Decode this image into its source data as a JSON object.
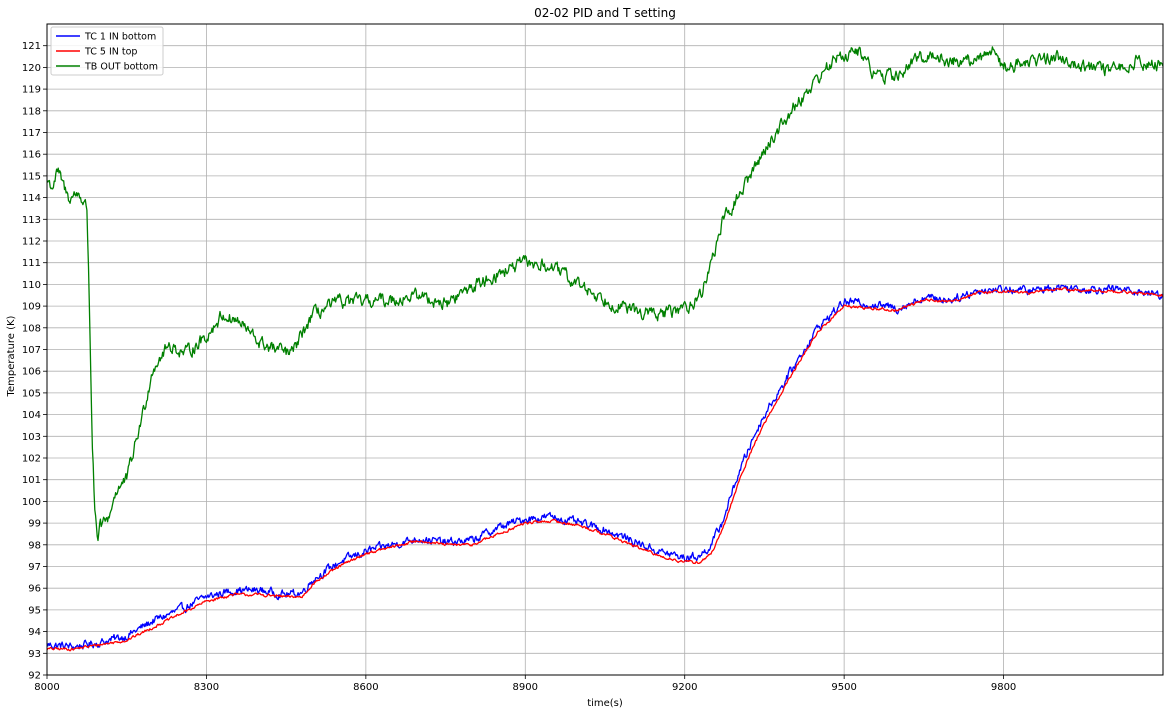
{
  "chart_data": {
    "type": "line",
    "title": "02-02 PID and T setting",
    "xlabel": "time(s)",
    "ylabel": "Temperature (K)",
    "xlim": [
      8000,
      10100
    ],
    "ylim": [
      92,
      122
    ],
    "xticks": [
      8000,
      8300,
      8600,
      8900,
      9200,
      9500,
      9800
    ],
    "yticks": [
      92,
      93,
      94,
      95,
      96,
      97,
      98,
      99,
      100,
      101,
      102,
      103,
      104,
      105,
      106,
      107,
      108,
      109,
      110,
      111,
      112,
      113,
      114,
      115,
      116,
      117,
      118,
      119,
      120,
      121
    ],
    "grid": true,
    "legend": "top-left",
    "series": [
      {
        "name": "TC 1 IN bottom",
        "color": "#0000ff",
        "noise": 0.35,
        "x": [
          8000,
          8050,
          8100,
          8150,
          8200,
          8250,
          8300,
          8350,
          8400,
          8450,
          8480,
          8500,
          8550,
          8600,
          8650,
          8700,
          8750,
          8800,
          8850,
          8900,
          8950,
          9000,
          9050,
          9100,
          9150,
          9200,
          9230,
          9250,
          9270,
          9300,
          9330,
          9350,
          9400,
          9450,
          9500,
          9550,
          9600,
          9650,
          9700,
          9750,
          9800,
          9850,
          9900,
          9950,
          10000,
          10050,
          10100
        ],
        "values": [
          93.4,
          93.3,
          93.5,
          93.8,
          94.5,
          95.0,
          95.6,
          95.9,
          95.9,
          95.7,
          95.8,
          96.4,
          97.2,
          97.7,
          98.0,
          98.3,
          98.1,
          98.2,
          98.8,
          99.2,
          99.3,
          99.0,
          98.7,
          98.2,
          97.7,
          97.4,
          97.5,
          98.0,
          99.0,
          101.2,
          103.0,
          104.0,
          106.0,
          108.0,
          109.2,
          109.1,
          108.9,
          109.4,
          109.3,
          109.7,
          109.8,
          109.7,
          109.9,
          109.8,
          109.8,
          109.7,
          109.5
        ]
      },
      {
        "name": "TC 5 IN top",
        "color": "#ff0000",
        "noise": 0.12,
        "x": [
          8000,
          8050,
          8100,
          8150,
          8200,
          8250,
          8300,
          8350,
          8400,
          8450,
          8480,
          8500,
          8550,
          8600,
          8650,
          8700,
          8750,
          8800,
          8850,
          8900,
          8950,
          9000,
          9050,
          9100,
          9150,
          9200,
          9230,
          9250,
          9270,
          9300,
          9330,
          9350,
          9400,
          9450,
          9500,
          9550,
          9600,
          9650,
          9700,
          9750,
          9800,
          9850,
          9900,
          9950,
          10000,
          10050,
          10100
        ],
        "values": [
          93.2,
          93.2,
          93.4,
          93.6,
          94.2,
          94.8,
          95.4,
          95.7,
          95.7,
          95.6,
          95.6,
          96.2,
          97.0,
          97.6,
          97.9,
          98.2,
          98.0,
          98.0,
          98.5,
          99.0,
          99.1,
          98.9,
          98.5,
          98.0,
          97.5,
          97.2,
          97.2,
          97.6,
          98.6,
          100.8,
          102.6,
          103.6,
          105.8,
          107.8,
          109.0,
          108.9,
          108.8,
          109.3,
          109.2,
          109.6,
          109.7,
          109.6,
          109.8,
          109.7,
          109.7,
          109.6,
          109.5
        ]
      },
      {
        "name": "TB OUT bottom",
        "color": "#008000",
        "noise": 0.55,
        "x": [
          8000,
          8010,
          8020,
          8040,
          8060,
          8075,
          8080,
          8085,
          8090,
          8095,
          8100,
          8115,
          8130,
          8150,
          8165,
          8180,
          8200,
          8230,
          8260,
          8300,
          8330,
          8360,
          8400,
          8430,
          8460,
          8500,
          8550,
          8600,
          8650,
          8700,
          8750,
          8800,
          8850,
          8900,
          8950,
          9000,
          9050,
          9100,
          9150,
          9200,
          9230,
          9250,
          9270,
          9300,
          9350,
          9400,
          9450,
          9480,
          9500,
          9530,
          9560,
          9600,
          9650,
          9700,
          9750,
          9780,
          9800,
          9850,
          9900,
          9950,
          10000,
          10050,
          10100
        ],
        "values": [
          114.8,
          114.5,
          115.2,
          114.0,
          114.2,
          113.5,
          109.0,
          103.0,
          99.5,
          98.0,
          98.8,
          99.2,
          100.5,
          101.0,
          102.5,
          104.0,
          106.2,
          107.2,
          106.8,
          107.6,
          108.6,
          108.3,
          107.3,
          107.0,
          106.8,
          108.6,
          109.2,
          109.2,
          109.3,
          109.5,
          109.1,
          109.9,
          110.5,
          111.0,
          110.8,
          110.0,
          109.3,
          108.8,
          108.6,
          108.9,
          109.5,
          111.0,
          112.8,
          114.0,
          116.2,
          118.0,
          119.5,
          120.3,
          120.6,
          120.7,
          119.6,
          119.6,
          120.6,
          120.3,
          120.3,
          120.9,
          120.0,
          120.3,
          120.5,
          120.1,
          119.8,
          120.3,
          120.0
        ]
      }
    ]
  }
}
